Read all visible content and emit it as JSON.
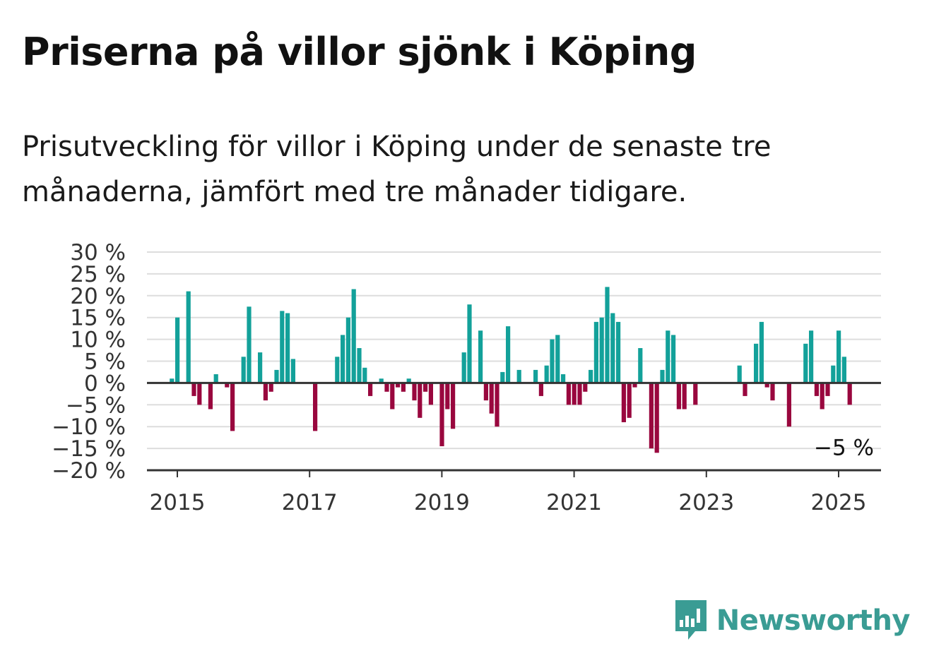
{
  "title": "Priserna på villor sjönk i Köping",
  "subtitle": "Prisutveckling för villor i Köping under de senaste tre månaderna, jämfört med tre månader tidigare.",
  "logo": {
    "text": "Newsworthy",
    "icon": "newsworthy-chart-bubble-icon"
  },
  "colors": {
    "positive": "#13a19a",
    "negative": "#99073e",
    "grid": "#dddddd",
    "axis": "#333333",
    "brand": "#3a9c94"
  },
  "chart_data": {
    "type": "bar",
    "ylim": [
      -20,
      30
    ],
    "yticks": [
      {
        "value": 30,
        "label": "30 %"
      },
      {
        "value": 25,
        "label": "25 %"
      },
      {
        "value": 20,
        "label": "20 %"
      },
      {
        "value": 15,
        "label": "15 %"
      },
      {
        "value": 10,
        "label": "10 %"
      },
      {
        "value": 5,
        "label": "5 %"
      },
      {
        "value": 0,
        "label": "0 %"
      },
      {
        "value": -5,
        "label": "−5 %"
      },
      {
        "value": -10,
        "label": "−10 %"
      },
      {
        "value": -15,
        "label": "−15 %"
      },
      {
        "value": -20,
        "label": "−20 %"
      }
    ],
    "xticks": [
      "2015",
      "2017",
      "2019",
      "2021",
      "2023",
      "2025"
    ],
    "grid": true,
    "unit": "%",
    "start": "2014-12",
    "values": [
      1,
      15,
      0,
      21,
      -3,
      -5,
      0,
      -6,
      2,
      0,
      -1,
      -11,
      0,
      6,
      17.5,
      0,
      7,
      -4,
      -2,
      3,
      16.5,
      16,
      5.5,
      0,
      0,
      0,
      -11,
      0,
      0,
      0,
      6,
      11,
      15,
      21.5,
      8,
      3.5,
      -3,
      0,
      1,
      -2,
      -6,
      -1,
      -2,
      1,
      -4,
      -8,
      -2,
      -5,
      0,
      -14.5,
      -6,
      -10.5,
      0,
      7,
      18,
      0,
      12,
      -4,
      -7,
      -10,
      2.5,
      13,
      0,
      3,
      0,
      0,
      3,
      -3,
      4,
      10,
      11,
      2,
      -5,
      -5,
      -5,
      -2,
      3,
      14,
      15,
      22,
      16,
      14,
      -9,
      -8,
      -1,
      8,
      0,
      -15,
      -16,
      3,
      12,
      11,
      -6,
      -6,
      0,
      -5,
      0,
      0,
      0,
      0,
      0,
      0,
      0,
      4,
      -3,
      0,
      9,
      14,
      -1,
      -4,
      0,
      0,
      -10,
      0,
      0,
      9,
      12,
      -3,
      -6,
      -3,
      4,
      12,
      6,
      -5
    ],
    "annotation": {
      "label": "−5 %",
      "value": -5
    }
  }
}
